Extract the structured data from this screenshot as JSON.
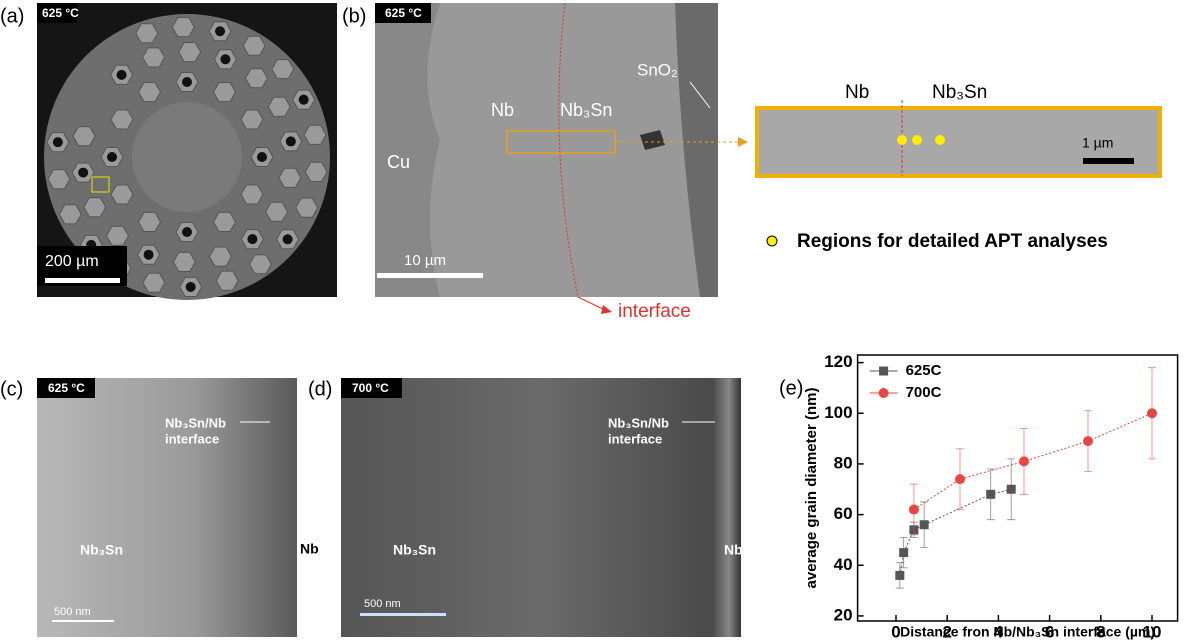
{
  "panels": [
    {
      "label": "(a)",
      "temperature": "625 °C",
      "scale_bar": "200 µm"
    },
    {
      "label": "(b)",
      "temperature": "625 °C",
      "scale_bar": "10 µm",
      "regions": [
        "Cu",
        "Nb",
        "Nb₃Sn",
        "SnO₂"
      ],
      "interface": "interface",
      "inset": {
        "left": "Nb",
        "right": "Nb₃Sn",
        "scale_bar": "1 µm"
      },
      "legend": "Regions for detailed APT analyses"
    },
    {
      "label": "(c)",
      "temperature": "625 °C",
      "interface": [
        "Nb₃Sn/Nb",
        "interface"
      ],
      "left": "Nb₃Sn",
      "right": "Nb",
      "scale_bar": "500 nm"
    },
    {
      "label": "(d)",
      "temperature": "700 °C",
      "interface": [
        "Nb₃Sn/Nb",
        "interface"
      ],
      "left": "Nb₃Sn",
      "right": "Nb",
      "scale_bar": "500 nm"
    },
    {
      "label": "(e)"
    }
  ],
  "chart_data": {
    "type": "scatter",
    "x_label": "Distance fron Nb/Nb₃Sn interface (µm)",
    "y_label": "average grain diameter (nm)",
    "xlim": [
      -1.5,
      11
    ],
    "ylim": [
      18,
      123
    ],
    "xticks": [
      0,
      2,
      4,
      6,
      8,
      10
    ],
    "yticks": [
      20,
      40,
      60,
      80,
      100,
      120
    ],
    "legend": "top-left",
    "series": [
      {
        "name": "625C",
        "color": "#555555",
        "marker": "square",
        "x": [
          0.15,
          0.3,
          0.7,
          1.1,
          3.7,
          4.5
        ],
        "values": [
          36,
          45,
          54,
          56,
          68,
          70
        ],
        "errors": [
          5,
          6,
          3,
          9,
          10,
          12
        ]
      },
      {
        "name": "700C",
        "color": "#e84545",
        "marker": "circle",
        "x": [
          0.7,
          2.5,
          5,
          7.5,
          10
        ],
        "values": [
          62,
          74,
          81,
          89,
          100
        ],
        "errors": [
          10,
          12,
          13,
          12,
          18
        ]
      }
    ]
  }
}
